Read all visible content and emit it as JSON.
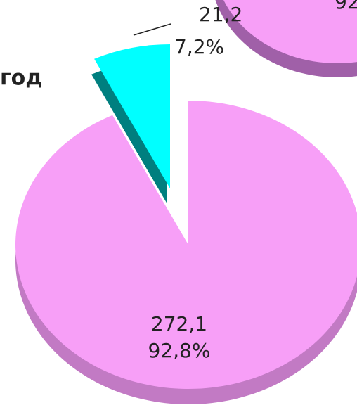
{
  "chart_data": {
    "type": "pie",
    "categories": [
      null,
      null
    ],
    "values": [
      272.1,
      21.2
    ],
    "value_labels": [
      "272,1",
      "21,2"
    ],
    "percent_labels": [
      "92,8%",
      "7,2%"
    ],
    "colors": [
      "#f79ff7",
      "#00ffff"
    ],
    "side_colors": [
      "#c27ac4",
      "#007f7f"
    ],
    "exploded": [
      false,
      true
    ],
    "annotations": [
      "год",
      "92"
    ]
  }
}
